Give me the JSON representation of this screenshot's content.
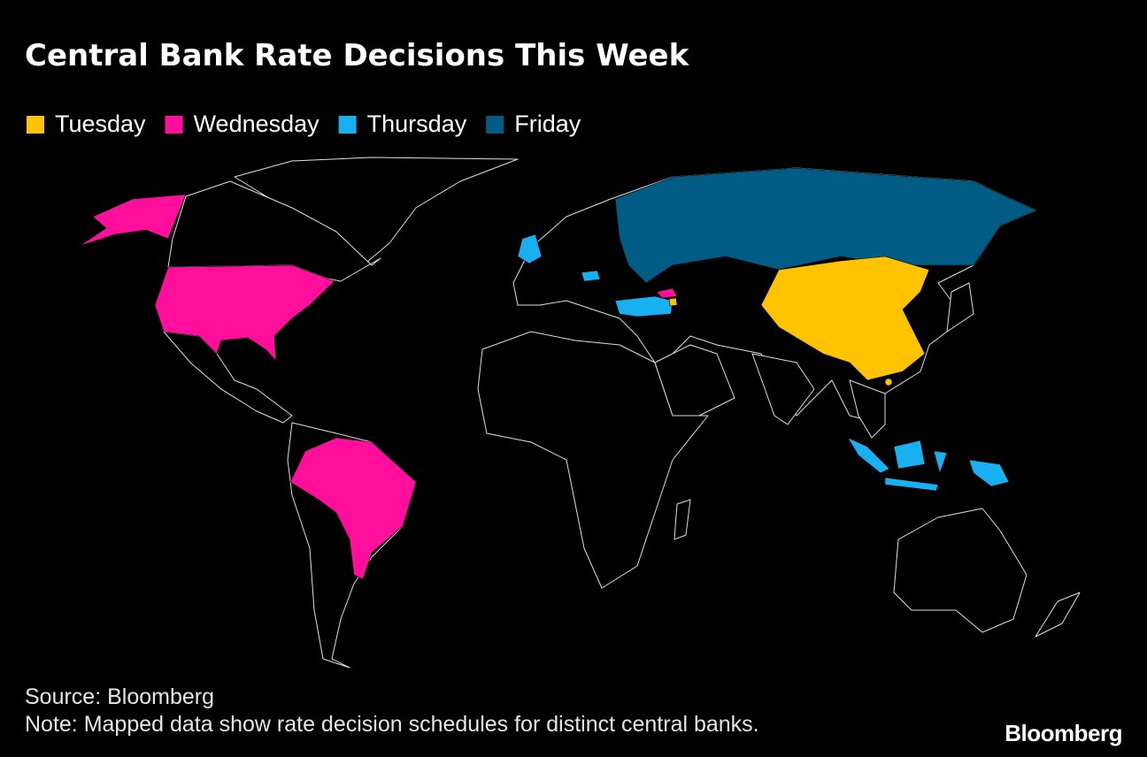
{
  "header": {
    "title": "Central Bank Rate Decisions This Week"
  },
  "legend": [
    {
      "label": "Tuesday",
      "color": "#ffc300"
    },
    {
      "label": "Wednesday",
      "color": "#ff0f9b"
    },
    {
      "label": "Thursday",
      "color": "#19b0f2"
    },
    {
      "label": "Friday",
      "color": "#005b85"
    }
  ],
  "footer": {
    "source": "Source: Bloomberg",
    "note": "Note: Mapped data show rate decision schedules for distinct central banks.",
    "brand": "Bloomberg"
  }
}
